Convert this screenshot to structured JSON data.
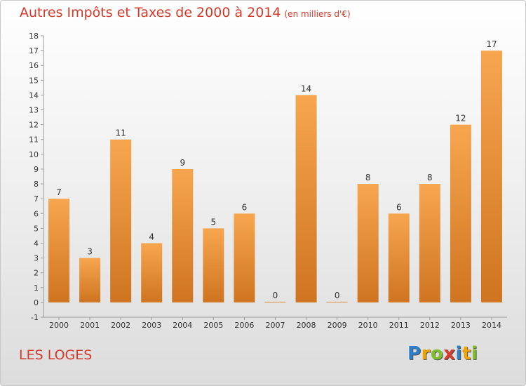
{
  "title": "Autres Impôts et Taxes de 2000 à 2014",
  "title_unit": "(en milliers d'€)",
  "commune": "LES LOGES",
  "brand": {
    "letters": [
      {
        "char": "P",
        "color": "#2e7ec9"
      },
      {
        "char": "r",
        "color": "#f0a400"
      },
      {
        "char": "o",
        "color": "#7fbf2a"
      },
      {
        "char": "x",
        "color": "#d93a2b"
      },
      {
        "char": "i",
        "color": "#2e7ec9"
      },
      {
        "char": "t",
        "color": "#f0a400"
      },
      {
        "char": "i",
        "color": "#7fbf2a"
      }
    ]
  },
  "colors": {
    "bar_top": "#f7a64f",
    "bar_bottom": "#cf7420",
    "title": "#d43a2a"
  },
  "chart_data": {
    "type": "bar",
    "categories": [
      "2000",
      "2001",
      "2002",
      "2003",
      "2004",
      "2005",
      "2006",
      "2007",
      "2008",
      "2009",
      "2010",
      "2011",
      "2012",
      "2013",
      "2014"
    ],
    "values": [
      7,
      3,
      11,
      4,
      9,
      5,
      6,
      0,
      14,
      0,
      8,
      6,
      8,
      12,
      17
    ],
    "y_ticks": [
      -1,
      0,
      1,
      2,
      3,
      4,
      5,
      6,
      7,
      8,
      9,
      10,
      11,
      12,
      13,
      14,
      15,
      16,
      17,
      18
    ],
    "ylim": [
      -1,
      18
    ],
    "grid": false,
    "legend": "none"
  }
}
